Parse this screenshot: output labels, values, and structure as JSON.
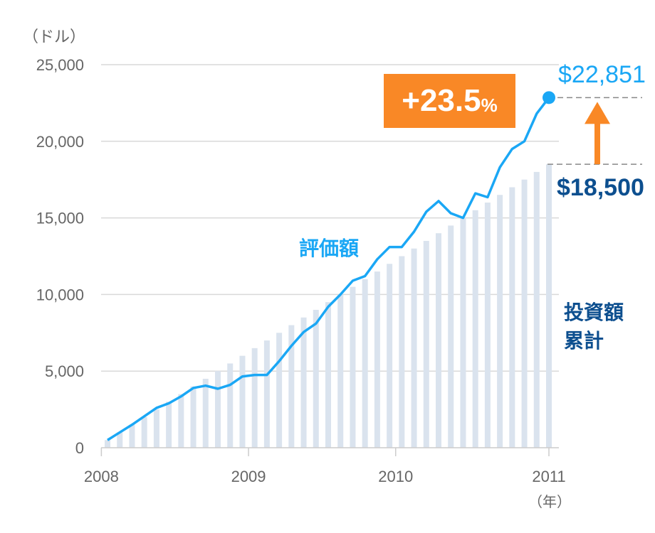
{
  "chart_data": {
    "type": "bar+line",
    "y_unit_label": "（ドル）",
    "x_unit_label": "（年）",
    "ylim": [
      0,
      25000
    ],
    "yticks": [
      0,
      5000,
      10000,
      15000,
      20000,
      25000
    ],
    "ytick_labels": [
      "0",
      "5,000",
      "10,000",
      "15,000",
      "20,000",
      "25,000"
    ],
    "xtick_labels": [
      "2008",
      "2009",
      "2010",
      "2011"
    ],
    "grid": true,
    "series": [
      {
        "name": "投資額累計",
        "type": "bar",
        "color": "#dae3ee",
        "values": [
          500,
          1000,
          1500,
          2000,
          2500,
          3000,
          3500,
          4000,
          4500,
          5000,
          5500,
          6000,
          6500,
          7000,
          7500,
          8000,
          8500,
          9000,
          9500,
          10000,
          10500,
          11000,
          11500,
          12000,
          12500,
          13000,
          13500,
          14000,
          14500,
          15000,
          15500,
          16000,
          16500,
          17000,
          17500,
          18000,
          18500
        ]
      },
      {
        "name": "評価額",
        "type": "line",
        "color": "#1aa7f5",
        "values": [
          500,
          1000,
          1500,
          2050,
          2600,
          2900,
          3350,
          3900,
          4050,
          3850,
          4100,
          4650,
          4750,
          4750,
          5650,
          6650,
          7550,
          8100,
          9200,
          10000,
          10900,
          11200,
          12300,
          13100,
          13100,
          14100,
          15400,
          16100,
          15300,
          15000,
          16600,
          16350,
          18300,
          19500,
          20000,
          21800,
          22851
        ]
      }
    ],
    "annotations": {
      "final_value": "$22,851",
      "invested": "$18,500",
      "gain": "+23.5",
      "gain_unit": "%",
      "line_label": "評価額",
      "bar_label_1": "投資額",
      "bar_label_2": "累計"
    },
    "colors": {
      "line": "#1aa7f5",
      "bar": "#dae3ee",
      "accent": "#f98826",
      "invested": "#0d4f8f"
    }
  }
}
